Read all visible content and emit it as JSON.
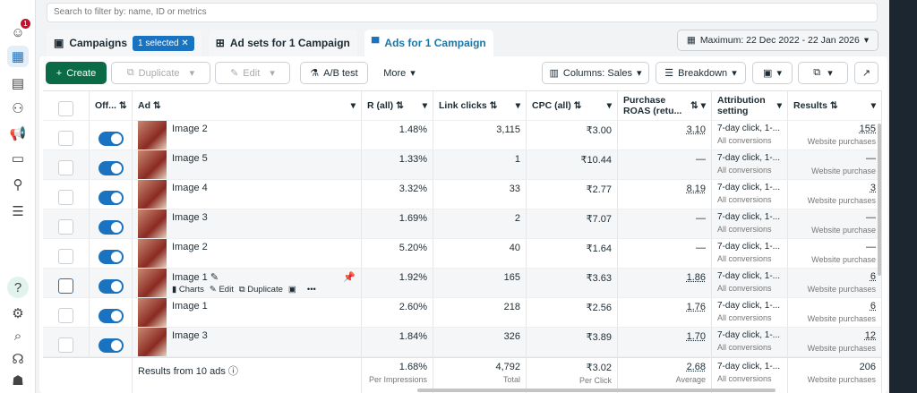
{
  "search": {
    "placeholder": "Search to filter by: name, ID or metrics"
  },
  "sidebar": {
    "notification_count": "1",
    "icons": [
      "account-icon",
      "table-icon",
      "pages-icon",
      "audience-icon",
      "megaphone-icon",
      "billing-icon",
      "hierarchy-icon",
      "menu-icon",
      "help-icon",
      "gear-icon",
      "search-icon",
      "support-icon",
      "bug-icon"
    ]
  },
  "tabs": {
    "campaigns": "Campaigns",
    "selected": "1 selected",
    "adsets": "Ad sets for 1 Campaign",
    "ads": "Ads for 1 Campaign"
  },
  "date_range": "Maximum: 22 Dec 2022 - 22 Jan 2026",
  "toolbar": {
    "create": "Create",
    "duplicate": "Duplicate",
    "edit": "Edit",
    "ab_test": "A/B test",
    "more": "More",
    "columns": "Columns: Sales",
    "breakdown": "Breakdown"
  },
  "headers": {
    "off": "Off...",
    "ad": "Ad",
    "ctr": "R (all)",
    "link_clicks": "Link clicks",
    "cpc": "CPC (all)",
    "roas": "Purchase ROAS (retu...",
    "attribution": "Attribution setting",
    "results": "Results"
  },
  "rows": [
    {
      "name": "Image 2",
      "ctr": "1.48%",
      "clicks": "3,115",
      "cpc": "₹3.00",
      "roas": "3.10",
      "attr": "7-day click, 1-...",
      "attr_sub": "All conversions",
      "results": "155",
      "results_sub": "Website purchases"
    },
    {
      "name": "Image 5",
      "ctr": "1.33%",
      "clicks": "1",
      "cpc": "₹10.44",
      "roas": "—",
      "attr": "7-day click, 1-...",
      "attr_sub": "All conversions",
      "results": "—",
      "results_sub": "Website purchase"
    },
    {
      "name": "Image 4",
      "ctr": "3.32%",
      "clicks": "33",
      "cpc": "₹2.77",
      "roas": "8.19",
      "attr": "7-day click, 1-...",
      "attr_sub": "All conversions",
      "results": "3",
      "results_sub": "Website purchases"
    },
    {
      "name": "Image 3",
      "ctr": "1.69%",
      "clicks": "2",
      "cpc": "₹7.07",
      "roas": "—",
      "attr": "7-day click, 1-...",
      "attr_sub": "All conversions",
      "results": "—",
      "results_sub": "Website purchase"
    },
    {
      "name": "Image 2",
      "ctr": "5.20%",
      "clicks": "40",
      "cpc": "₹1.64",
      "roas": "—",
      "attr": "7-day click, 1-...",
      "attr_sub": "All conversions",
      "results": "—",
      "results_sub": "Website purchase"
    },
    {
      "name": "Image 1",
      "ctr": "1.92%",
      "clicks": "165",
      "cpc": "₹3.63",
      "roas": "1.86",
      "attr": "7-day click, 1-...",
      "attr_sub": "All conversions",
      "results": "6",
      "results_sub": "Website purchases"
    },
    {
      "name": "Image 1",
      "ctr": "2.60%",
      "clicks": "218",
      "cpc": "₹2.56",
      "roas": "1.76",
      "attr": "7-day click, 1-...",
      "attr_sub": "All conversions",
      "results": "6",
      "results_sub": "Website purchases"
    },
    {
      "name": "Image 3",
      "ctr": "1.84%",
      "clicks": "326",
      "cpc": "₹3.89",
      "roas": "1.70",
      "attr": "7-day click, 1-...",
      "attr_sub": "All conversions",
      "results": "12",
      "results_sub": "Website purchases"
    }
  ],
  "hover_actions": {
    "charts": "Charts",
    "edit": "Edit",
    "duplicate": "Duplicate",
    "more": "•••"
  },
  "footer": {
    "label": "Results from 10 ads",
    "ctr": "1.68%",
    "ctr_sub": "Per Impressions",
    "clicks": "4,792",
    "clicks_sub": "Total",
    "cpc": "₹3.02",
    "cpc_sub": "Per Click",
    "roas": "2.68",
    "roas_sub": "Average",
    "attr": "7-day click, 1-...",
    "attr_sub": "All conversions",
    "results": "206",
    "results_sub": "Website purchases"
  }
}
